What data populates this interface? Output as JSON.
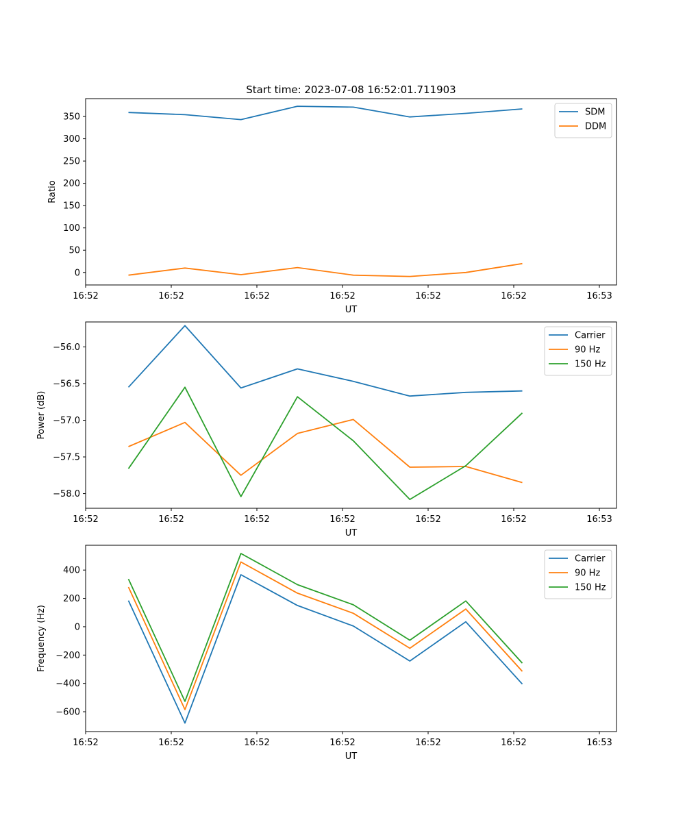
{
  "title": "Start time: 2023-07-08 16:52:01.711903",
  "chart_data": [
    {
      "type": "line",
      "ylabel": "Ratio",
      "xlabel": "UT",
      "xlim": [
        0,
        9.3
      ],
      "ylim": [
        -28,
        390
      ],
      "x_ticks": [
        {
          "x": 0,
          "label": "16:52"
        },
        {
          "x": 1.5,
          "label": "16:52"
        },
        {
          "x": 3,
          "label": "16:52"
        },
        {
          "x": 4.5,
          "label": "16:52"
        },
        {
          "x": 6,
          "label": "16:52"
        },
        {
          "x": 7.5,
          "label": "16:52"
        },
        {
          "x": 9,
          "label": "16:53"
        }
      ],
      "y_ticks": [
        0,
        50,
        100,
        150,
        200,
        250,
        300,
        350
      ],
      "x": [
        0.75,
        1.74,
        2.72,
        3.71,
        4.69,
        5.68,
        6.66,
        7.65
      ],
      "series": [
        {
          "name": "SDM",
          "color": "#1f77b4",
          "values": [
            359,
            354,
            343,
            373,
            371,
            349,
            357,
            367
          ]
        },
        {
          "name": "DDM",
          "color": "#ff7f0e",
          "values": [
            -6,
            10,
            -5,
            11,
            -6,
            -9,
            0,
            20
          ]
        }
      ]
    },
    {
      "type": "line",
      "ylabel": "Power (dB)",
      "xlabel": "UT",
      "xlim": [
        0,
        9.3
      ],
      "ylim": [
        -58.2,
        -55.66
      ],
      "x_ticks": [
        {
          "x": 0,
          "label": "16:52"
        },
        {
          "x": 1.5,
          "label": "16:52"
        },
        {
          "x": 3,
          "label": "16:52"
        },
        {
          "x": 4.5,
          "label": "16:52"
        },
        {
          "x": 6,
          "label": "16:52"
        },
        {
          "x": 7.5,
          "label": "16:52"
        },
        {
          "x": 9,
          "label": "16:53"
        }
      ],
      "y_ticks": [
        {
          "v": -58.0,
          "label": "−58.0"
        },
        {
          "v": -57.5,
          "label": "−57.5"
        },
        {
          "v": -57.0,
          "label": "−57.0"
        },
        {
          "v": -56.5,
          "label": "−56.5"
        },
        {
          "v": -56.0,
          "label": "−56.0"
        }
      ],
      "x": [
        0.75,
        1.74,
        2.72,
        3.71,
        4.69,
        5.68,
        6.66,
        7.65
      ],
      "series": [
        {
          "name": "Carrier",
          "color": "#1f77b4",
          "values": [
            -56.55,
            -55.71,
            -56.56,
            -56.3,
            -56.47,
            -56.67,
            -56.62,
            -56.6
          ]
        },
        {
          "name": "90 Hz",
          "color": "#ff7f0e",
          "values": [
            -57.36,
            -57.03,
            -57.75,
            -57.18,
            -56.99,
            -57.64,
            -57.63,
            -57.85
          ]
        },
        {
          "name": "150 Hz",
          "color": "#2ca02c",
          "values": [
            -57.66,
            -56.55,
            -58.04,
            -56.68,
            -57.28,
            -58.08,
            -57.62,
            -56.9
          ]
        }
      ]
    },
    {
      "type": "line",
      "ylabel": "Frequency (Hz)",
      "xlabel": "UT",
      "xlim": [
        0,
        9.3
      ],
      "ylim": [
        -740,
        575
      ],
      "x_ticks": [
        {
          "x": 0,
          "label": "16:52"
        },
        {
          "x": 1.5,
          "label": "16:52"
        },
        {
          "x": 3,
          "label": "16:52"
        },
        {
          "x": 4.5,
          "label": "16:52"
        },
        {
          "x": 6,
          "label": "16:52"
        },
        {
          "x": 7.5,
          "label": "16:52"
        },
        {
          "x": 9,
          "label": "16:53"
        }
      ],
      "y_ticks": [
        {
          "v": -600,
          "label": "−600"
        },
        {
          "v": -400,
          "label": "−400"
        },
        {
          "v": -200,
          "label": "−200"
        },
        {
          "v": 0,
          "label": "0"
        },
        {
          "v": 200,
          "label": "200"
        },
        {
          "v": 400,
          "label": "400"
        }
      ],
      "x": [
        0.75,
        1.74,
        2.72,
        3.71,
        4.69,
        5.68,
        6.66,
        7.65
      ],
      "series": [
        {
          "name": "Carrier",
          "color": "#1f77b4",
          "values": [
            185,
            -680,
            367,
            150,
            5,
            -242,
            35,
            -405
          ]
        },
        {
          "name": "90 Hz",
          "color": "#ff7f0e",
          "values": [
            280,
            -585,
            457,
            237,
            95,
            -152,
            125,
            -315
          ]
        },
        {
          "name": "150 Hz",
          "color": "#2ca02c",
          "values": [
            337,
            -527,
            517,
            297,
            155,
            -95,
            182,
            -257
          ]
        }
      ]
    }
  ]
}
